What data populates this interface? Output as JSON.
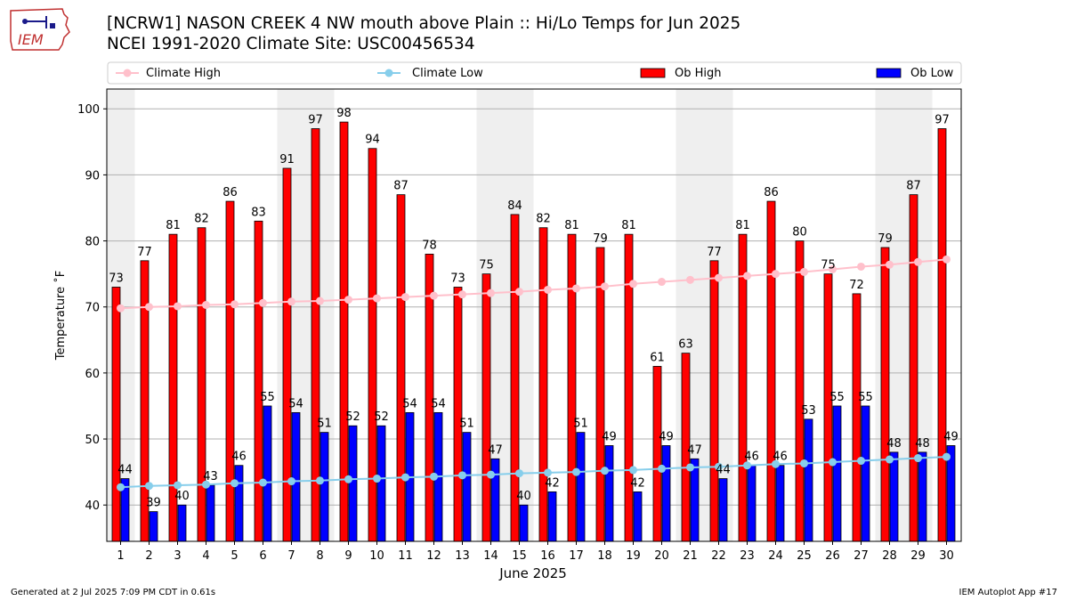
{
  "title_line1": "[NCRW1] NASON CREEK 4 NW mouth above Plain :: Hi/Lo Temps for Jun 2025",
  "title_line2": "NCEI 1991-2020 Climate Site: USC00456534",
  "logo_text": "IEM",
  "footer_left": "Generated at 2 Jul 2025 7:09 PM CDT in 0.61s",
  "footer_right": "IEM Autoplot App #17",
  "colors": {
    "ob_high": "#ff0000",
    "ob_low": "#0000ff",
    "climate_high": "#ffc0cb",
    "climate_low": "#87ceeb",
    "weekend_shade": "#efefef",
    "grid": "#b0b0b0"
  },
  "chart_data": {
    "type": "bar",
    "xlabel": "June 2025",
    "ylabel": "Temperature ˚F",
    "ylim": [
      34.5,
      103
    ],
    "yticks": [
      40,
      50,
      60,
      70,
      80,
      90,
      100
    ],
    "grid": "horizontal",
    "legend_position": "top",
    "categories": [
      "1",
      "2",
      "3",
      "4",
      "5",
      "6",
      "7",
      "8",
      "9",
      "10",
      "11",
      "12",
      "13",
      "14",
      "15",
      "16",
      "17",
      "18",
      "19",
      "20",
      "21",
      "22",
      "23",
      "24",
      "25",
      "26",
      "27",
      "28",
      "29",
      "30"
    ],
    "weekend_days": [
      1,
      7,
      8,
      14,
      15,
      21,
      22,
      28,
      29
    ],
    "series": [
      {
        "name": "Ob High",
        "kind": "bar",
        "values": [
          73,
          77,
          81,
          82,
          86,
          83,
          91,
          97,
          98,
          94,
          87,
          78,
          73,
          75,
          84,
          82,
          81,
          79,
          81,
          61,
          63,
          77,
          81,
          86,
          80,
          75,
          72,
          79,
          87,
          97
        ]
      },
      {
        "name": "Ob Low",
        "kind": "bar",
        "values": [
          44,
          39,
          40,
          43,
          46,
          55,
          54,
          51,
          52,
          52,
          54,
          54,
          51,
          47,
          40,
          42,
          51,
          49,
          42,
          49,
          47,
          44,
          46,
          46,
          53,
          55,
          55,
          48,
          48,
          49
        ]
      },
      {
        "name": "Climate High",
        "kind": "line",
        "values": [
          69.8,
          70.0,
          70.1,
          70.3,
          70.4,
          70.6,
          70.8,
          70.9,
          71.1,
          71.3,
          71.5,
          71.7,
          71.9,
          72.1,
          72.3,
          72.6,
          72.8,
          73.1,
          73.5,
          73.8,
          74.1,
          74.4,
          74.7,
          75.0,
          75.3,
          75.7,
          76.1,
          76.4,
          76.8,
          77.2
        ]
      },
      {
        "name": "Climate Low",
        "kind": "line",
        "values": [
          42.7,
          42.9,
          43.0,
          43.1,
          43.3,
          43.4,
          43.6,
          43.7,
          43.9,
          44.0,
          44.2,
          44.3,
          44.5,
          44.6,
          44.8,
          44.9,
          45.0,
          45.2,
          45.3,
          45.5,
          45.7,
          45.8,
          46.0,
          46.2,
          46.3,
          46.5,
          46.7,
          46.9,
          47.1,
          47.3
        ]
      }
    ],
    "legend_labels": [
      "Climate High",
      "Climate Low",
      "Ob High",
      "Ob Low"
    ]
  }
}
